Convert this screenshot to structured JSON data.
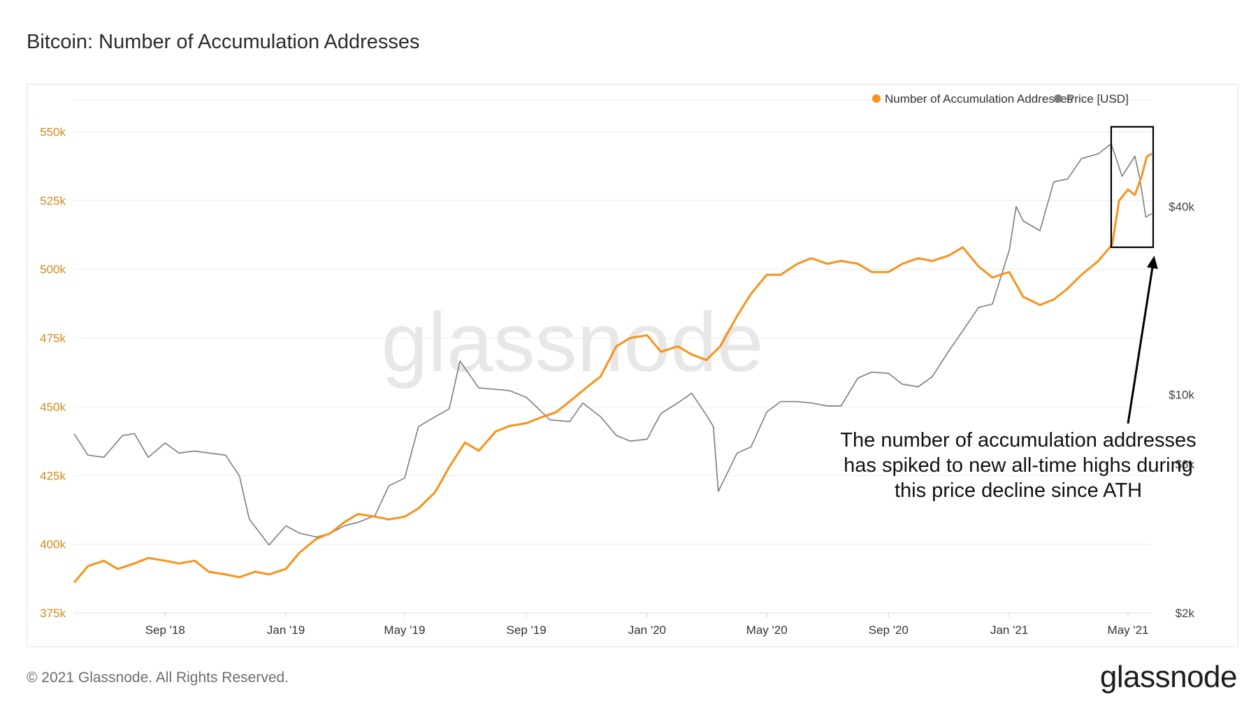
{
  "title": "Bitcoin: Number of Accumulation Addresses",
  "footer": {
    "copyright": "© 2021 Glassnode. All Rights Reserved.",
    "logo_text": "glassnode"
  },
  "watermark": "glassnode",
  "colors": {
    "accumulation": "#f7931a",
    "price": "#7d7d7d",
    "left_axis_text": "#d4891e",
    "right_axis_text": "#444444",
    "grid": "#ececec",
    "watermark": "#e7e7e7"
  },
  "chart_data": {
    "type": "line",
    "title": "Bitcoin: Number of Accumulation Addresses",
    "xlabel": "",
    "x_ticks": [
      "Sep '18",
      "Jan '19",
      "May '19",
      "Sep '19",
      "Jan '20",
      "May '20",
      "Sep '20",
      "Jan '21",
      "May '21"
    ],
    "x_range": [
      "2018-06-01",
      "2021-05-25"
    ],
    "y_left": {
      "label": "",
      "ticks": [
        "375k",
        "400k",
        "425k",
        "450k",
        "475k",
        "500k",
        "525k",
        "550k"
      ],
      "range": [
        375000,
        557000
      ]
    },
    "y_right": {
      "label": "",
      "scale": "log",
      "ticks": [
        "$2k",
        "$6k",
        "$10k",
        "$40k"
      ],
      "tick_values": [
        2000,
        6000,
        10000,
        40000
      ],
      "range": [
        2000,
        80000
      ]
    },
    "legend": {
      "position": "top-right",
      "entries": [
        "Number of Accumulation Addresses",
        "Price [USD]"
      ]
    },
    "series": [
      {
        "name": "Number of Accumulation Addresses",
        "axis": "left",
        "points": [
          [
            "2018-06-01",
            386000
          ],
          [
            "2018-06-15",
            392000
          ],
          [
            "2018-07-01",
            394000
          ],
          [
            "2018-07-15",
            391000
          ],
          [
            "2018-08-01",
            393000
          ],
          [
            "2018-08-15",
            395000
          ],
          [
            "2018-09-01",
            394000
          ],
          [
            "2018-09-15",
            393000
          ],
          [
            "2018-10-01",
            394000
          ],
          [
            "2018-10-15",
            390000
          ],
          [
            "2018-11-01",
            389000
          ],
          [
            "2018-11-15",
            388000
          ],
          [
            "2018-12-01",
            390000
          ],
          [
            "2018-12-15",
            389000
          ],
          [
            "2019-01-01",
            391000
          ],
          [
            "2019-01-15",
            397000
          ],
          [
            "2019-02-01",
            402000
          ],
          [
            "2019-02-15",
            404000
          ],
          [
            "2019-03-01",
            408000
          ],
          [
            "2019-03-15",
            411000
          ],
          [
            "2019-04-01",
            410000
          ],
          [
            "2019-04-15",
            409000
          ],
          [
            "2019-05-01",
            410000
          ],
          [
            "2019-05-15",
            413000
          ],
          [
            "2019-06-01",
            419000
          ],
          [
            "2019-06-15",
            428000
          ],
          [
            "2019-07-01",
            437000
          ],
          [
            "2019-07-15",
            434000
          ],
          [
            "2019-08-01",
            441000
          ],
          [
            "2019-08-15",
            443000
          ],
          [
            "2019-09-01",
            444000
          ],
          [
            "2019-09-15",
            446000
          ],
          [
            "2019-10-01",
            448000
          ],
          [
            "2019-10-15",
            452000
          ],
          [
            "2019-11-01",
            457000
          ],
          [
            "2019-11-15",
            461000
          ],
          [
            "2019-12-01",
            472000
          ],
          [
            "2019-12-15",
            475000
          ],
          [
            "2020-01-01",
            476000
          ],
          [
            "2020-01-15",
            470000
          ],
          [
            "2020-02-01",
            472000
          ],
          [
            "2020-02-15",
            469000
          ],
          [
            "2020-03-01",
            467000
          ],
          [
            "2020-03-15",
            472000
          ],
          [
            "2020-04-01",
            483000
          ],
          [
            "2020-04-15",
            491000
          ],
          [
            "2020-05-01",
            498000
          ],
          [
            "2020-05-15",
            498000
          ],
          [
            "2020-06-01",
            502000
          ],
          [
            "2020-06-15",
            504000
          ],
          [
            "2020-07-01",
            502000
          ],
          [
            "2020-07-15",
            503000
          ],
          [
            "2020-08-01",
            502000
          ],
          [
            "2020-08-15",
            499000
          ],
          [
            "2020-09-01",
            499000
          ],
          [
            "2020-09-15",
            502000
          ],
          [
            "2020-10-01",
            504000
          ],
          [
            "2020-10-15",
            503000
          ],
          [
            "2020-11-01",
            505000
          ],
          [
            "2020-11-15",
            508000
          ],
          [
            "2020-12-01",
            501000
          ],
          [
            "2020-12-15",
            497000
          ],
          [
            "2021-01-01",
            499000
          ],
          [
            "2021-01-15",
            490000
          ],
          [
            "2021-02-01",
            487000
          ],
          [
            "2021-02-15",
            489000
          ],
          [
            "2021-03-01",
            493000
          ],
          [
            "2021-03-15",
            498000
          ],
          [
            "2021-04-01",
            503000
          ],
          [
            "2021-04-15",
            509000
          ],
          [
            "2021-04-22",
            525000
          ],
          [
            "2021-05-01",
            529000
          ],
          [
            "2021-05-08",
            527000
          ],
          [
            "2021-05-15",
            534000
          ],
          [
            "2021-05-20",
            541000
          ],
          [
            "2021-05-25",
            542000
          ]
        ]
      },
      {
        "name": "Price [USD]",
        "axis": "right",
        "points": [
          [
            "2018-06-01",
            7500
          ],
          [
            "2018-06-15",
            6400
          ],
          [
            "2018-07-01",
            6300
          ],
          [
            "2018-07-20",
            7400
          ],
          [
            "2018-08-01",
            7500
          ],
          [
            "2018-08-15",
            6300
          ],
          [
            "2018-09-01",
            7000
          ],
          [
            "2018-09-15",
            6500
          ],
          [
            "2018-10-01",
            6600
          ],
          [
            "2018-10-15",
            6500
          ],
          [
            "2018-11-01",
            6400
          ],
          [
            "2018-11-15",
            5500
          ],
          [
            "2018-11-25",
            4000
          ],
          [
            "2018-12-15",
            3300
          ],
          [
            "2019-01-01",
            3800
          ],
          [
            "2019-01-15",
            3600
          ],
          [
            "2019-02-01",
            3500
          ],
          [
            "2019-02-15",
            3600
          ],
          [
            "2019-03-01",
            3800
          ],
          [
            "2019-03-15",
            3900
          ],
          [
            "2019-04-01",
            4100
          ],
          [
            "2019-04-15",
            5100
          ],
          [
            "2019-05-01",
            5400
          ],
          [
            "2019-05-15",
            7900
          ],
          [
            "2019-06-01",
            8500
          ],
          [
            "2019-06-15",
            9000
          ],
          [
            "2019-06-26",
            12800
          ],
          [
            "2019-07-15",
            10500
          ],
          [
            "2019-08-01",
            10400
          ],
          [
            "2019-08-15",
            10300
          ],
          [
            "2019-09-01",
            9800
          ],
          [
            "2019-09-25",
            8300
          ],
          [
            "2019-10-15",
            8200
          ],
          [
            "2019-10-28",
            9400
          ],
          [
            "2019-11-15",
            8500
          ],
          [
            "2019-12-01",
            7400
          ],
          [
            "2019-12-15",
            7100
          ],
          [
            "2020-01-01",
            7200
          ],
          [
            "2020-01-15",
            8700
          ],
          [
            "2020-02-01",
            9400
          ],
          [
            "2020-02-15",
            10100
          ],
          [
            "2020-03-01",
            8600
          ],
          [
            "2020-03-08",
            7900
          ],
          [
            "2020-03-13",
            4900
          ],
          [
            "2020-04-01",
            6500
          ],
          [
            "2020-04-15",
            6800
          ],
          [
            "2020-05-01",
            8800
          ],
          [
            "2020-05-15",
            9500
          ],
          [
            "2020-06-01",
            9500
          ],
          [
            "2020-06-15",
            9400
          ],
          [
            "2020-07-01",
            9200
          ],
          [
            "2020-07-15",
            9200
          ],
          [
            "2020-08-01",
            11300
          ],
          [
            "2020-08-15",
            11800
          ],
          [
            "2020-09-01",
            11700
          ],
          [
            "2020-09-15",
            10800
          ],
          [
            "2020-10-01",
            10600
          ],
          [
            "2020-10-15",
            11400
          ],
          [
            "2020-11-01",
            13800
          ],
          [
            "2020-11-15",
            16000
          ],
          [
            "2020-12-01",
            19000
          ],
          [
            "2020-12-15",
            19500
          ],
          [
            "2021-01-01",
            29000
          ],
          [
            "2021-01-08",
            40000
          ],
          [
            "2021-01-15",
            36000
          ],
          [
            "2021-02-01",
            33500
          ],
          [
            "2021-02-15",
            48000
          ],
          [
            "2021-03-01",
            49000
          ],
          [
            "2021-03-15",
            57000
          ],
          [
            "2021-04-01",
            59000
          ],
          [
            "2021-04-14",
            63500
          ],
          [
            "2021-04-25",
            50000
          ],
          [
            "2021-05-08",
            58000
          ],
          [
            "2021-05-13",
            49000
          ],
          [
            "2021-05-19",
            37000
          ],
          [
            "2021-05-25",
            38000
          ]
        ]
      }
    ],
    "annotation": {
      "text_lines": [
        "The number of accumulation addresses",
        "has spiked to new all-time highs during",
        "this price decline since ATH"
      ],
      "highlight_range": [
        "2021-04-14",
        "2021-05-25"
      ]
    }
  }
}
